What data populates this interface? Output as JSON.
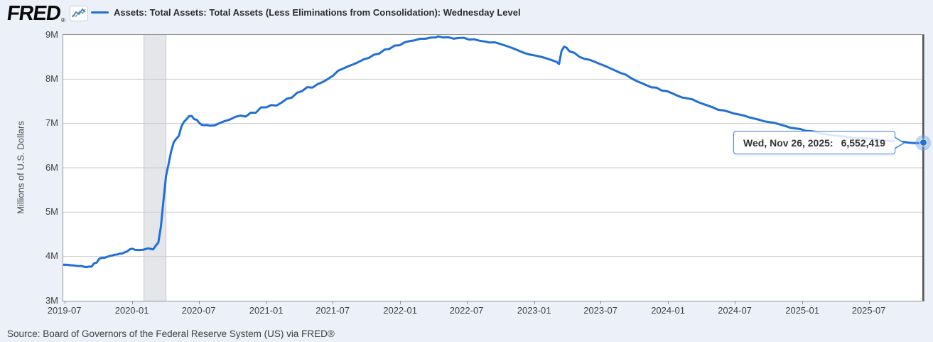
{
  "header": {
    "logo_text": "FRED",
    "logo_reg": "®",
    "legend_label": "Assets: Total Assets: Total Assets (Less Eliminations from Consolidation): Wednesday Level"
  },
  "colors": {
    "line": "#1f6fd6",
    "background": "#ecf1f9",
    "plot_background": "#ffffff",
    "grid": "#cacaca",
    "plot_border": "#949494",
    "recession_band": "#e4e6e9",
    "recession_band_edge": "#c6c8cc",
    "crosshair": "#1a1a1a",
    "tooltip_border": "#4688d8",
    "axis_text": "#3f3f3f"
  },
  "tooltip": {
    "date_label": "Wed, Nov 26, 2025:",
    "value": "6,552,419"
  },
  "y_axis": {
    "title": "Millions of U.S. Dollars"
  },
  "source": {
    "text": "Source: Board of Governors of the Federal Reserve System (US) via FRED®"
  },
  "chart_data": {
    "type": "line",
    "title": "Assets: Total Assets: Total Assets (Less Eliminations from Consolidation): Wednesday Level",
    "ylabel": "Millions of U.S. Dollars",
    "units": "millions of U.S. dollars",
    "legend_position": "top",
    "grid": "horizontal",
    "ylim": [
      3000000,
      9000000
    ],
    "x_range": [
      "2019-06-26",
      "2025-11-26"
    ],
    "y_ticks": [
      {
        "label": "9M",
        "value": 9000000
      },
      {
        "label": "8M",
        "value": 8000000
      },
      {
        "label": "7M",
        "value": 7000000
      },
      {
        "label": "6M",
        "value": 6000000
      },
      {
        "label": "5M",
        "value": 5000000
      },
      {
        "label": "4M",
        "value": 4000000
      },
      {
        "label": "3M",
        "value": 3000000
      }
    ],
    "x_ticks": [
      {
        "label": "2019-07",
        "date": "2019-07-01"
      },
      {
        "label": "2020-01",
        "date": "2020-01-01"
      },
      {
        "label": "2020-07",
        "date": "2020-07-01"
      },
      {
        "label": "2021-01",
        "date": "2021-01-01"
      },
      {
        "label": "2021-07",
        "date": "2021-07-01"
      },
      {
        "label": "2022-01",
        "date": "2022-01-01"
      },
      {
        "label": "2022-07",
        "date": "2022-07-01"
      },
      {
        "label": "2023-01",
        "date": "2023-01-01"
      },
      {
        "label": "2023-07",
        "date": "2023-07-01"
      },
      {
        "label": "2024-01",
        "date": "2024-01-01"
      },
      {
        "label": "2024-07",
        "date": "2024-07-01"
      },
      {
        "label": "2025-01",
        "date": "2025-01-01"
      },
      {
        "label": "2025-07",
        "date": "2025-07-01"
      }
    ],
    "recession_bands": [
      {
        "start": "2020-02-01",
        "end": "2020-04-01"
      }
    ],
    "last_point": {
      "date": "2025-11-26",
      "value": 6552419,
      "display": "6,552,419"
    },
    "series": [
      {
        "name": "Assets: Total Assets: Total Assets (Less Eliminations from Consolidation): Wednesday Level",
        "color": "#1f6fd6",
        "points": [
          [
            "2019-06-26",
            3812000
          ],
          [
            "2019-07-03",
            3813000
          ],
          [
            "2019-07-10",
            3808000
          ],
          [
            "2019-07-17",
            3800000
          ],
          [
            "2019-07-24",
            3797000
          ],
          [
            "2019-07-31",
            3790000
          ],
          [
            "2019-08-07",
            3782000
          ],
          [
            "2019-08-14",
            3785000
          ],
          [
            "2019-08-21",
            3770000
          ],
          [
            "2019-08-28",
            3761000
          ],
          [
            "2019-09-04",
            3772000
          ],
          [
            "2019-09-11",
            3769000
          ],
          [
            "2019-09-18",
            3845000
          ],
          [
            "2019-09-25",
            3860000
          ],
          [
            "2019-10-02",
            3946000
          ],
          [
            "2019-10-09",
            3970000
          ],
          [
            "2019-10-16",
            3966000
          ],
          [
            "2019-10-23",
            3992000
          ],
          [
            "2019-10-30",
            4008000
          ],
          [
            "2019-11-06",
            4021000
          ],
          [
            "2019-11-13",
            4040000
          ],
          [
            "2019-11-20",
            4042000
          ],
          [
            "2019-11-27",
            4066000
          ],
          [
            "2019-12-04",
            4066000
          ],
          [
            "2019-12-11",
            4096000
          ],
          [
            "2019-12-18",
            4117000
          ],
          [
            "2019-12-25",
            4165000
          ],
          [
            "2020-01-01",
            4173000
          ],
          [
            "2020-01-08",
            4149000
          ],
          [
            "2020-01-15",
            4145000
          ],
          [
            "2020-01-22",
            4145000
          ],
          [
            "2020-01-29",
            4151000
          ],
          [
            "2020-02-05",
            4166000
          ],
          [
            "2020-02-12",
            4182000
          ],
          [
            "2020-02-19",
            4171000
          ],
          [
            "2020-02-26",
            4158000
          ],
          [
            "2020-03-04",
            4241000
          ],
          [
            "2020-03-11",
            4312000
          ],
          [
            "2020-03-18",
            4668000
          ],
          [
            "2020-03-25",
            5254000
          ],
          [
            "2020-04-01",
            5811000
          ],
          [
            "2020-04-08",
            6083000
          ],
          [
            "2020-04-15",
            6368000
          ],
          [
            "2020-04-22",
            6573000
          ],
          [
            "2020-04-29",
            6656000
          ],
          [
            "2020-05-06",
            6721000
          ],
          [
            "2020-05-13",
            6934000
          ],
          [
            "2020-05-20",
            7037000
          ],
          [
            "2020-05-27",
            7097000
          ],
          [
            "2020-06-03",
            7165000
          ],
          [
            "2020-06-10",
            7169000
          ],
          [
            "2020-06-17",
            7095000
          ],
          [
            "2020-06-24",
            7083000
          ],
          [
            "2020-07-01",
            7009000
          ],
          [
            "2020-07-08",
            6969000
          ],
          [
            "2020-07-15",
            6959000
          ],
          [
            "2020-07-22",
            6965000
          ],
          [
            "2020-07-29",
            6949000
          ],
          [
            "2020-08-12",
            6957000
          ],
          [
            "2020-08-26",
            7011000
          ],
          [
            "2020-09-09",
            7056000
          ],
          [
            "2020-09-23",
            7093000
          ],
          [
            "2020-10-07",
            7150000
          ],
          [
            "2020-10-21",
            7177000
          ],
          [
            "2020-11-04",
            7157000
          ],
          [
            "2020-11-18",
            7243000
          ],
          [
            "2020-12-02",
            7244000
          ],
          [
            "2020-12-16",
            7363000
          ],
          [
            "2020-12-30",
            7363000
          ],
          [
            "2021-01-13",
            7415000
          ],
          [
            "2021-01-27",
            7404000
          ],
          [
            "2021-02-10",
            7471000
          ],
          [
            "2021-02-24",
            7557000
          ],
          [
            "2021-03-10",
            7584000
          ],
          [
            "2021-03-24",
            7693000
          ],
          [
            "2021-04-07",
            7731000
          ],
          [
            "2021-04-21",
            7820000
          ],
          [
            "2021-05-05",
            7810000
          ],
          [
            "2021-05-19",
            7886000
          ],
          [
            "2021-06-02",
            7935000
          ],
          [
            "2021-06-16",
            8002000
          ],
          [
            "2021-06-30",
            8078000
          ],
          [
            "2021-07-14",
            8190000
          ],
          [
            "2021-07-28",
            8240000
          ],
          [
            "2021-08-11",
            8293000
          ],
          [
            "2021-08-25",
            8336000
          ],
          [
            "2021-09-08",
            8388000
          ],
          [
            "2021-09-22",
            8448000
          ],
          [
            "2021-10-06",
            8480000
          ],
          [
            "2021-10-20",
            8554000
          ],
          [
            "2021-11-03",
            8575000
          ],
          [
            "2021-11-17",
            8664000
          ],
          [
            "2021-12-01",
            8683000
          ],
          [
            "2021-12-15",
            8757000
          ],
          [
            "2021-12-29",
            8766000
          ],
          [
            "2022-01-12",
            8834000
          ],
          [
            "2022-01-26",
            8860000
          ],
          [
            "2022-02-09",
            8878000
          ],
          [
            "2022-02-23",
            8911000
          ],
          [
            "2022-03-09",
            8912000
          ],
          [
            "2022-03-23",
            8937000
          ],
          [
            "2022-04-06",
            8943000
          ],
          [
            "2022-04-13",
            8965000
          ],
          [
            "2022-04-27",
            8939000
          ],
          [
            "2022-05-11",
            8946000
          ],
          [
            "2022-05-25",
            8914000
          ],
          [
            "2022-06-08",
            8929000
          ],
          [
            "2022-06-22",
            8934000
          ],
          [
            "2022-07-06",
            8891000
          ],
          [
            "2022-07-20",
            8899000
          ],
          [
            "2022-08-03",
            8868000
          ],
          [
            "2022-08-17",
            8851000
          ],
          [
            "2022-08-31",
            8826000
          ],
          [
            "2022-09-14",
            8832000
          ],
          [
            "2022-09-28",
            8796000
          ],
          [
            "2022-10-12",
            8759000
          ],
          [
            "2022-10-26",
            8720000
          ],
          [
            "2022-11-09",
            8676000
          ],
          [
            "2022-11-23",
            8625000
          ],
          [
            "2022-12-07",
            8582000
          ],
          [
            "2022-12-21",
            8551000
          ],
          [
            "2023-01-04",
            8530000
          ],
          [
            "2023-01-18",
            8504000
          ],
          [
            "2023-02-01",
            8470000
          ],
          [
            "2023-02-15",
            8433000
          ],
          [
            "2023-03-01",
            8390000
          ],
          [
            "2023-03-08",
            8342000
          ],
          [
            "2023-03-15",
            8639000
          ],
          [
            "2023-03-22",
            8734000
          ],
          [
            "2023-03-29",
            8706000
          ],
          [
            "2023-04-05",
            8632000
          ],
          [
            "2023-04-19",
            8593000
          ],
          [
            "2023-05-03",
            8503000
          ],
          [
            "2023-05-17",
            8456000
          ],
          [
            "2023-05-31",
            8436000
          ],
          [
            "2023-06-14",
            8390000
          ],
          [
            "2023-06-28",
            8341000
          ],
          [
            "2023-07-12",
            8298000
          ],
          [
            "2023-07-26",
            8243000
          ],
          [
            "2023-08-09",
            8191000
          ],
          [
            "2023-08-23",
            8139000
          ],
          [
            "2023-09-06",
            8101000
          ],
          [
            "2023-09-20",
            8024000
          ],
          [
            "2023-10-04",
            7963000
          ],
          [
            "2023-10-18",
            7916000
          ],
          [
            "2023-11-01",
            7866000
          ],
          [
            "2023-11-15",
            7815000
          ],
          [
            "2023-11-29",
            7808000
          ],
          [
            "2023-12-13",
            7742000
          ],
          [
            "2023-12-27",
            7731000
          ],
          [
            "2024-01-10",
            7683000
          ],
          [
            "2024-01-24",
            7630000
          ],
          [
            "2024-02-07",
            7585000
          ],
          [
            "2024-02-21",
            7567000
          ],
          [
            "2024-03-06",
            7541000
          ],
          [
            "2024-03-20",
            7485000
          ],
          [
            "2024-04-03",
            7443000
          ],
          [
            "2024-04-17",
            7402000
          ],
          [
            "2024-05-01",
            7361000
          ],
          [
            "2024-05-15",
            7307000
          ],
          [
            "2024-05-29",
            7296000
          ],
          [
            "2024-06-12",
            7264000
          ],
          [
            "2024-06-26",
            7226000
          ],
          [
            "2024-07-10",
            7205000
          ],
          [
            "2024-07-24",
            7178000
          ],
          [
            "2024-08-07",
            7139000
          ],
          [
            "2024-08-21",
            7112000
          ],
          [
            "2024-09-04",
            7083000
          ],
          [
            "2024-09-18",
            7047000
          ],
          [
            "2024-10-02",
            7029000
          ],
          [
            "2024-10-16",
            7012000
          ],
          [
            "2024-10-30",
            6977000
          ],
          [
            "2024-11-13",
            6945000
          ],
          [
            "2024-11-27",
            6905000
          ],
          [
            "2024-12-11",
            6889000
          ],
          [
            "2024-12-25",
            6874000
          ],
          [
            "2025-01-08",
            6834000
          ],
          [
            "2025-01-22",
            6826000
          ],
          [
            "2025-02-05",
            6812000
          ],
          [
            "2025-02-19",
            6771000
          ],
          [
            "2025-03-05",
            6759000
          ],
          [
            "2025-03-19",
            6735000
          ],
          [
            "2025-04-02",
            6726000
          ],
          [
            "2025-04-16",
            6709000
          ],
          [
            "2025-04-30",
            6701000
          ],
          [
            "2025-05-14",
            6673000
          ],
          [
            "2025-05-28",
            6662000
          ],
          [
            "2025-06-11",
            6668000
          ],
          [
            "2025-06-25",
            6662000
          ],
          [
            "2025-07-09",
            6653000
          ],
          [
            "2025-07-23",
            6643000
          ],
          [
            "2025-08-06",
            6621000
          ],
          [
            "2025-08-20",
            6611000
          ],
          [
            "2025-09-03",
            6604000
          ],
          [
            "2025-09-17",
            6595000
          ],
          [
            "2025-10-01",
            6586000
          ],
          [
            "2025-10-15",
            6568000
          ],
          [
            "2025-10-29",
            6560000
          ],
          [
            "2025-11-12",
            6557000
          ],
          [
            "2025-11-26",
            6552419
          ]
        ]
      }
    ]
  }
}
